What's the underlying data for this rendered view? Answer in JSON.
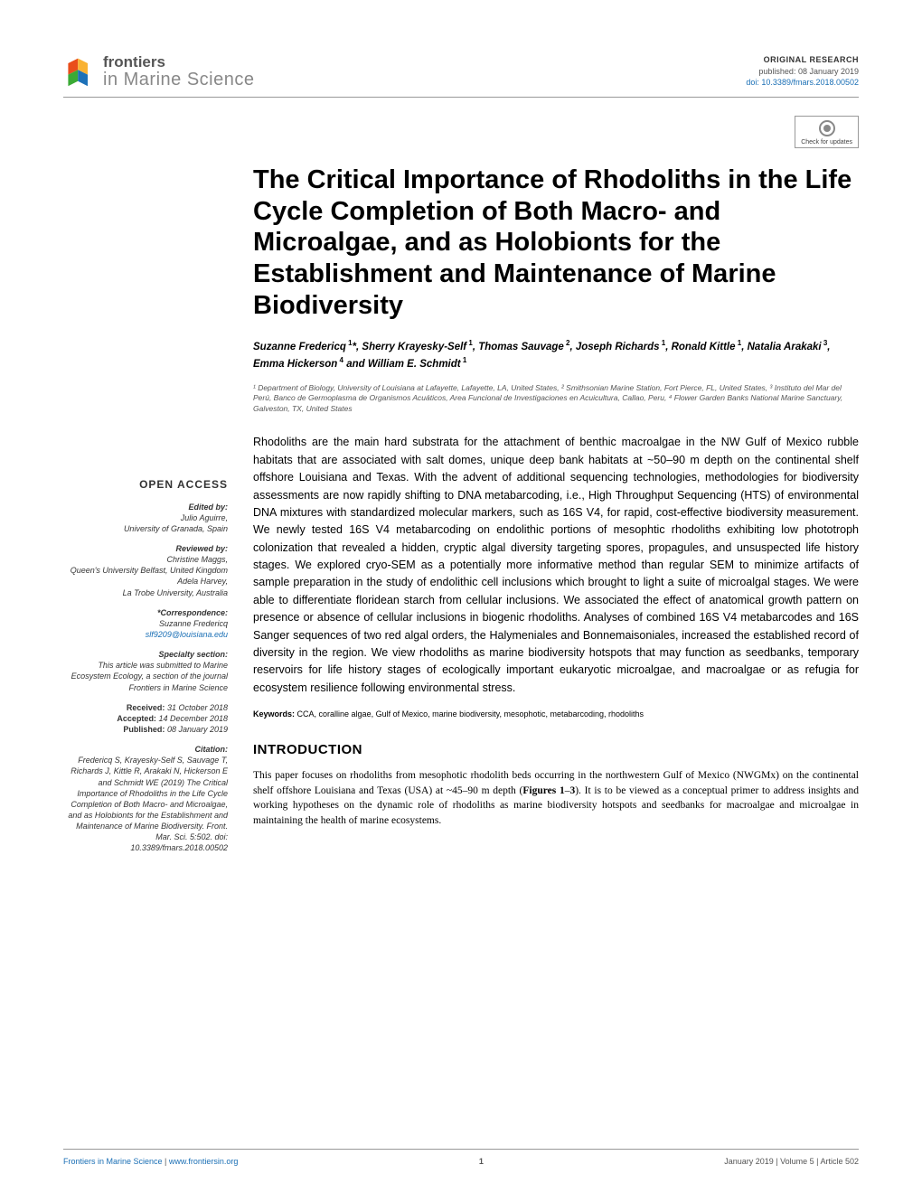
{
  "header": {
    "journal_top": "frontiers",
    "journal_sub": "in Marine Science",
    "article_type": "ORIGINAL RESEARCH",
    "pub_date": "published: 08 January 2019",
    "doi": "doi: 10.3389/fmars.2018.00502",
    "check_updates": "Check for updates"
  },
  "article": {
    "title": "The Critical Importance of Rhodoliths in the Life Cycle Completion of Both Macro- and Microalgae, and as Holobionts for the Establishment and Maintenance of Marine Biodiversity",
    "authors_html": "Suzanne Fredericq<sup> 1</sup>*, Sherry Krayesky-Self<sup> 1</sup>, Thomas Sauvage<sup> 2</sup>, Joseph Richards<sup> 1</sup>, Ronald Kittle<sup> 1</sup>, Natalia Arakaki<sup> 3</sup>, Emma Hickerson<sup> 4</sup> and William E. Schmidt<sup> 1</sup>",
    "affiliations": "¹ Department of Biology, University of Louisiana at Lafayette, Lafayette, LA, United States, ² Smithsonian Marine Station, Fort Pierce, FL, United States, ³ Instituto del Mar del Perú, Banco de Germoplasma de Organismos Acuáticos, Area Funcional de Investigaciones en Acuicultura, Callao, Peru, ⁴ Flower Garden Banks National Marine Sanctuary, Galveston, TX, United States",
    "abstract": "Rhodoliths are the main hard substrata for the attachment of benthic macroalgae in the NW Gulf of Mexico rubble habitats that are associated with salt domes, unique deep bank habitats at ~50–90 m depth on the continental shelf offshore Louisiana and Texas. With the advent of additional sequencing technologies, methodologies for biodiversity assessments are now rapidly shifting to DNA metabarcoding, i.e., High Throughput Sequencing (HTS) of environmental DNA mixtures with standardized molecular markers, such as 16S V4, for rapid, cost-effective biodiversity measurement. We newly tested 16S V4 metabarcoding on endolithic portions of mesophtic rhodoliths exhibiting low phototroph colonization that revealed a hidden, cryptic algal diversity targeting spores, propagules, and unsuspected life history stages. We explored cryo-SEM as a potentially more informative method than regular SEM to minimize artifacts of sample preparation in the study of endolithic cell inclusions which brought to light a suite of microalgal stages. We were able to differentiate floridean starch from cellular inclusions. We associated the effect of anatomical growth pattern on presence or absence of cellular inclusions in biogenic rhodoliths. Analyses of combined 16S V4 metabarcodes and 16S Sanger sequences of two red algal orders, the Halymeniales and Bonnemaisoniales, increased the established record of diversity in the region. We view rhodoliths as marine biodiversity hotspots that may function as seedbanks, temporary reservoirs for life history stages of ecologically important eukaryotic microalgae, and macroalgae or as refugia for ecosystem resilience following environmental stress.",
    "keywords_label": "Keywords:",
    "keywords": "CCA, coralline algae, Gulf of Mexico, marine biodiversity, mesophotic, metabarcoding, rhodoliths",
    "intro_heading": "INTRODUCTION",
    "intro_text": "This paper focuses on rhodoliths from mesophotic rhodolith beds occurring in the northwestern Gulf of Mexico (NWGMx) on the continental shelf offshore Louisiana and Texas (USA) at ~45–90 m depth (Figures 1–3). It is to be viewed as a conceptual primer to address insights and working hypotheses on the dynamic role of rhodoliths as marine biodiversity hotspots and seedbanks for macroalgae and microalgae in maintaining the health of marine ecosystems."
  },
  "sidebar": {
    "open_access": "OPEN ACCESS",
    "edited_by_h": "Edited by:",
    "edited_by": "Julio Aguirre,",
    "edited_by_aff": "University of Granada, Spain",
    "reviewed_by_h": "Reviewed by:",
    "rev1": "Christine Maggs,",
    "rev1_aff": "Queen's University Belfast, United Kingdom",
    "rev2": "Adela Harvey,",
    "rev2_aff": "La Trobe University, Australia",
    "corr_h": "*Correspondence:",
    "corr_name": "Suzanne Fredericq",
    "corr_email": "slf9209@louisiana.edu",
    "specialty_h": "Specialty section:",
    "specialty": "This article was submitted to Marine Ecosystem Ecology, a section of the journal Frontiers in Marine Science",
    "received_l": "Received:",
    "received": " 31 October 2018",
    "accepted_l": "Accepted:",
    "accepted": " 14 December 2018",
    "published_l": "Published:",
    "published": " 08 January 2019",
    "citation_h": "Citation:",
    "citation": "Fredericq S, Krayesky-Self S, Sauvage T, Richards J, Kittle R, Arakaki N, Hickerson E and Schmidt WE (2019) The Critical Importance of Rhodoliths in the Life Cycle Completion of Both Macro- and Microalgae, and as Holobionts for the Establishment and Maintenance of Marine Biodiversity. Front. Mar. Sci. 5:502. doi: 10.3389/fmars.2018.00502"
  },
  "footer": {
    "left_journal": "Frontiers in Marine Science",
    "left_url": "www.frontiersin.org",
    "page": "1",
    "right": "January 2019 | Volume 5 | Article 502"
  },
  "colors": {
    "link": "#1a6fb5",
    "logo_accents": [
      "#e94e1b",
      "#f9b233",
      "#3aaa35",
      "#1d71b8"
    ]
  }
}
